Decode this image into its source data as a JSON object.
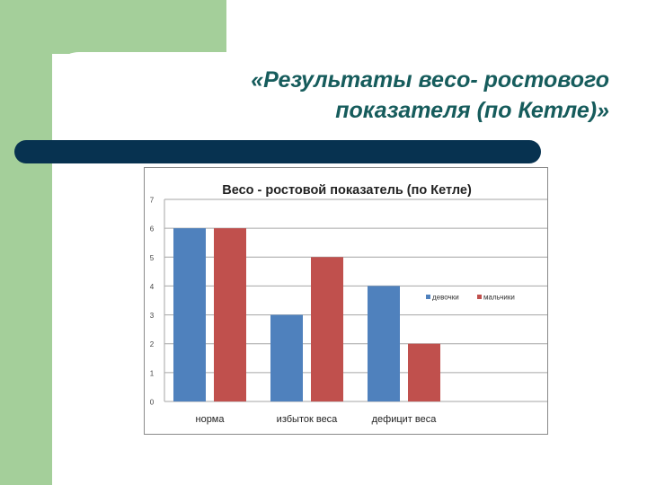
{
  "slide": {
    "title_line1": "«Результаты весо- ростового",
    "title_line2": "показателя (по Кетле)»"
  },
  "colors": {
    "green": "#a4cf9a",
    "navy": "#073250",
    "title": "#165c5c",
    "series_girls": "#4f81bd",
    "series_boys": "#c0504d"
  },
  "chart_data": {
    "type": "bar",
    "title": "Весо - ростовой показатель (по Кетле)",
    "categories": [
      "норма",
      "избыток веса",
      "дефицит веса"
    ],
    "series": [
      {
        "name": "девочки",
        "values": [
          6,
          3,
          4
        ]
      },
      {
        "name": "мальчики",
        "values": [
          6,
          5,
          2
        ]
      }
    ],
    "xlabel": "",
    "ylabel": "",
    "ylim": [
      0,
      7
    ],
    "yticks": [
      0,
      1,
      2,
      3,
      4,
      5,
      6,
      7
    ],
    "grid": true,
    "legend_position": "right"
  }
}
